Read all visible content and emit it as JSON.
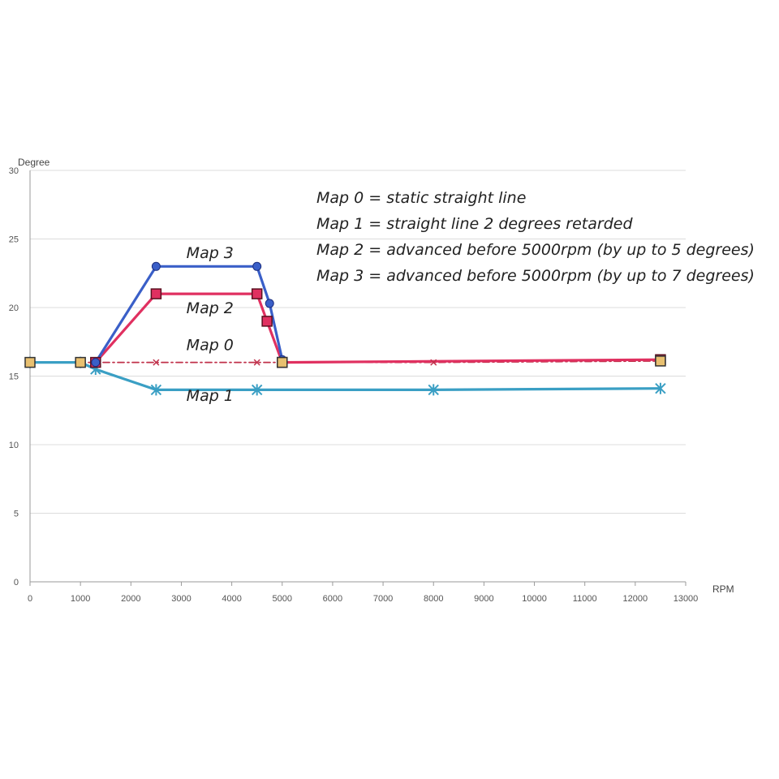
{
  "chart_data": {
    "type": "line",
    "title": "",
    "xlabel": "RPM",
    "ylabel": "Degree",
    "xlim": [
      0,
      13000
    ],
    "ylim": [
      0,
      30
    ],
    "xticks": [
      0,
      1000,
      2000,
      3000,
      4000,
      5000,
      6000,
      7000,
      8000,
      9000,
      10000,
      11000,
      12000,
      13000
    ],
    "yticks": [
      0,
      5,
      10,
      15,
      20,
      25,
      30
    ],
    "grid": true,
    "notes": [
      "Map 0 = static straight line",
      "Map 1 = straight line 2 degrees retarded",
      "Map 2 = advanced before 5000rpm (by up to 5 degrees)",
      "Map 3 = advanced before 5000rpm (by up to 7 degrees)"
    ],
    "series": [
      {
        "name": "Map 0",
        "color": "#c0304a",
        "dashed": true,
        "marker": "x",
        "label_at": [
          3100,
          16.9
        ],
        "points": [
          [
            0,
            16
          ],
          [
            1000,
            16
          ],
          [
            1300,
            16
          ],
          [
            2500,
            16
          ],
          [
            4500,
            16
          ],
          [
            5000,
            16
          ],
          [
            8000,
            16
          ],
          [
            12500,
            16.1
          ]
        ]
      },
      {
        "name": "Map 1",
        "color": "#3a9fc4",
        "dashed": false,
        "marker": "star",
        "label_at": [
          3100,
          13.2
        ],
        "points": [
          [
            0,
            16
          ],
          [
            1000,
            16
          ],
          [
            1300,
            15.5
          ],
          [
            2500,
            14
          ],
          [
            4500,
            14
          ],
          [
            8000,
            14
          ],
          [
            12500,
            14.1
          ]
        ]
      },
      {
        "name": "Map 2",
        "color": "#e03060",
        "dashed": false,
        "marker": "square",
        "label_at": [
          3100,
          19.6
        ],
        "points": [
          [
            1300,
            16
          ],
          [
            2500,
            21
          ],
          [
            4500,
            21
          ],
          [
            4700,
            19
          ],
          [
            5000,
            16
          ],
          [
            12500,
            16.2
          ]
        ]
      },
      {
        "name": "Map 3",
        "color": "#3a5fc8",
        "dashed": false,
        "marker": "diamond",
        "label_at": [
          3100,
          23.6
        ],
        "points": [
          [
            1300,
            16
          ],
          [
            2500,
            23
          ],
          [
            4500,
            23
          ],
          [
            4750,
            20.3
          ],
          [
            5000,
            16.2
          ]
        ]
      }
    ],
    "base_line": {
      "color": "#7ccf6a",
      "points": [
        [
          0,
          16
        ],
        [
          1000,
          16
        ]
      ]
    }
  }
}
